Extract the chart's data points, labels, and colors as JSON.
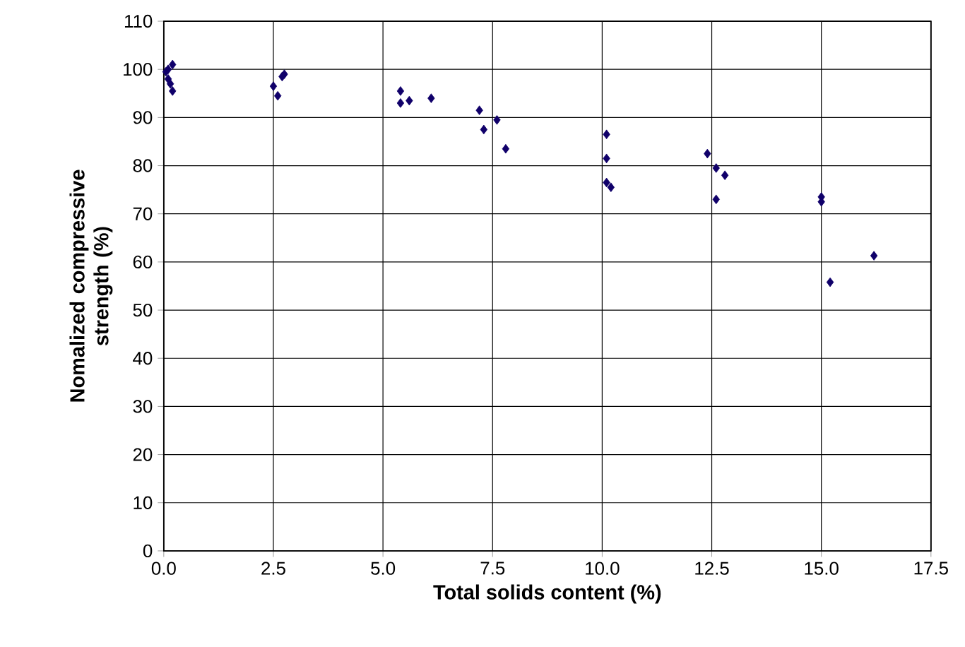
{
  "chart_data": {
    "type": "scatter",
    "xlabel": "Total solids content (%)",
    "ylabel": "Nomalized compressive strength (%)",
    "xlim": [
      0,
      17.5
    ],
    "ylim": [
      0,
      110
    ],
    "xticks": [
      {
        "value": 0,
        "label": "0.0"
      },
      {
        "value": 2.5,
        "label": "2.5"
      },
      {
        "value": 5,
        "label": "5.0"
      },
      {
        "value": 7.5,
        "label": "7.5"
      },
      {
        "value": 10,
        "label": "10.0"
      },
      {
        "value": 12.5,
        "label": "12.5"
      },
      {
        "value": 15,
        "label": "15.0"
      },
      {
        "value": 17.5,
        "label": "17.5"
      }
    ],
    "yticks": [
      0,
      10,
      20,
      30,
      40,
      50,
      60,
      70,
      80,
      90,
      100,
      110
    ],
    "grid": true,
    "marker": "diamond",
    "series": [
      {
        "color": "#10006a",
        "x": [
          0.05,
          0.1,
          0.2,
          0.1,
          0.15,
          0.2,
          2.5,
          2.6,
          2.7,
          2.75,
          5.4,
          5.4,
          5.6,
          6.1,
          7.2,
          7.3,
          7.6,
          7.8,
          10.1,
          10.1,
          10.1,
          10.2,
          12.4,
          12.6,
          12.8,
          12.6,
          15.0,
          15.0,
          15.2,
          16.2
        ],
        "values": [
          99.5,
          100,
          101,
          98,
          97,
          95.5,
          96.5,
          94.5,
          98.5,
          99,
          95.5,
          93,
          93.5,
          94,
          91.5,
          87.5,
          89.5,
          83.5,
          86.5,
          81.5,
          76.5,
          75.5,
          82.5,
          79.5,
          78,
          73,
          73.5,
          72.5,
          55.8,
          61.3
        ]
      }
    ]
  }
}
